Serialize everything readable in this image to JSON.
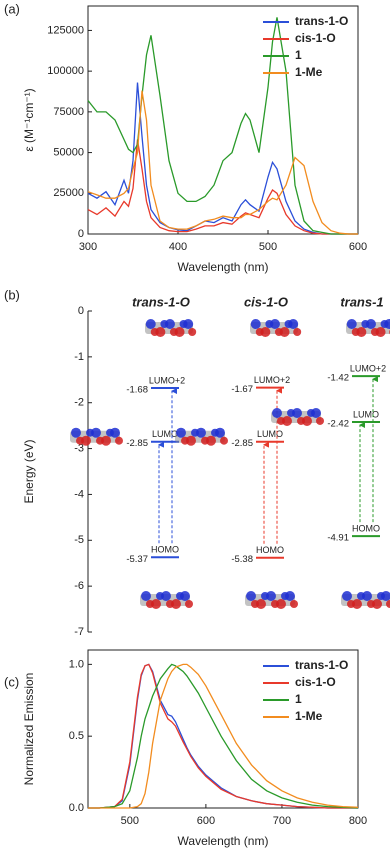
{
  "chart_data": [
    {
      "type": "line",
      "panel_label": "(a)",
      "xlabel": "Wavelength (nm)",
      "ylabel": "ε (M⁻¹cm⁻¹)",
      "xlim": [
        300,
        600
      ],
      "ylim": [
        0,
        140000
      ],
      "xticks": [
        300,
        400,
        500,
        600
      ],
      "yticks": [
        0,
        25000,
        50000,
        75000,
        100000,
        125000
      ],
      "legend": "upper right",
      "x": [
        300,
        310,
        320,
        330,
        340,
        345,
        350,
        355,
        360,
        365,
        370,
        380,
        390,
        400,
        410,
        420,
        430,
        440,
        450,
        460,
        470,
        475,
        480,
        490,
        500,
        505,
        510,
        520,
        530,
        540,
        550,
        560,
        570,
        580,
        590,
        600
      ],
      "series": [
        {
          "name": "trans-1-O",
          "color": "#2b4fd8",
          "values": [
            25000,
            22000,
            26000,
            18000,
            33000,
            25000,
            45000,
            93000,
            60000,
            30000,
            15000,
            7000,
            4000,
            2500,
            2000,
            5000,
            8000,
            7000,
            10000,
            8000,
            18000,
            21000,
            18000,
            14000,
            35000,
            44000,
            40000,
            20000,
            8000,
            3000,
            1000,
            0,
            0,
            0,
            0,
            0
          ]
        },
        {
          "name": "cis-1-O",
          "color": "#e8392b",
          "values": [
            15000,
            12000,
            16000,
            11000,
            20000,
            17000,
            28000,
            58000,
            40000,
            20000,
            10000,
            4000,
            2000,
            1500,
            1500,
            3000,
            5000,
            5000,
            7000,
            6000,
            11000,
            13000,
            12000,
            10000,
            22000,
            27000,
            25000,
            12000,
            5000,
            2000,
            500,
            0,
            0,
            0,
            0,
            0
          ]
        },
        {
          "name": "1",
          "color": "#2a9a2a",
          "values": [
            82000,
            75000,
            75000,
            70000,
            58000,
            52000,
            50000,
            55000,
            85000,
            110000,
            122000,
            85000,
            45000,
            25000,
            20000,
            20000,
            23000,
            30000,
            45000,
            50000,
            68000,
            74000,
            70000,
            50000,
            90000,
            118000,
            133000,
            100000,
            30000,
            8000,
            2000,
            1000,
            0,
            0,
            0,
            0
          ]
        },
        {
          "name": "1-Me",
          "color": "#f28c1f",
          "values": [
            26000,
            24000,
            22000,
            22000,
            25000,
            28000,
            40000,
            50000,
            88000,
            70000,
            30000,
            8000,
            4000,
            3000,
            3000,
            5000,
            8000,
            9000,
            11000,
            10000,
            10000,
            12000,
            12000,
            15000,
            20000,
            22000,
            21000,
            30000,
            47000,
            42000,
            20000,
            7000,
            2000,
            500,
            0,
            0
          ]
        }
      ]
    },
    {
      "type": "energy_levels",
      "panel_label": "(b)",
      "ylabel": "Energy (eV)",
      "ylim": [
        -7,
        0
      ],
      "yticks": [
        0,
        -1,
        -2,
        -3,
        -4,
        -5,
        -6,
        -7
      ],
      "columns": [
        {
          "name": "trans-1-O",
          "color": "#2b4fd8",
          "levels": [
            {
              "name": "LUMO+2",
              "value": -1.68
            },
            {
              "name": "LUMO",
              "value": -2.85
            },
            {
              "name": "HOMO",
              "value": -5.37
            }
          ]
        },
        {
          "name": "cis-1-O",
          "color": "#e8392b",
          "levels": [
            {
              "name": "LUMO+2",
              "value": -1.67
            },
            {
              "name": "LUMO",
              "value": -2.85
            },
            {
              "name": "HOMO",
              "value": -5.38
            }
          ]
        },
        {
          "name": "trans-1",
          "color": "#2a9a2a",
          "levels": [
            {
              "name": "LUMO+2",
              "value": -1.42
            },
            {
              "name": "LUMO",
              "value": -2.42
            },
            {
              "name": "HOMO",
              "value": -4.91
            }
          ]
        }
      ]
    },
    {
      "type": "line",
      "panel_label": "(c)",
      "xlabel": "Wavelength (nm)",
      "ylabel": "Normalized Emission",
      "xlim": [
        445,
        800
      ],
      "ylim": [
        0,
        1.1
      ],
      "xticks": [
        500,
        600,
        700,
        800
      ],
      "yticks": [
        {
          "value": 0,
          "label": "0.0"
        },
        {
          "value": 0.5,
          "label": "0.5"
        },
        {
          "value": 1,
          "label": "1.0"
        }
      ],
      "legend": "upper right",
      "x": [
        445,
        460,
        480,
        490,
        500,
        510,
        515,
        520,
        525,
        530,
        540,
        550,
        555,
        560,
        570,
        575,
        580,
        590,
        600,
        620,
        640,
        660,
        680,
        700,
        720,
        740,
        760,
        780,
        800
      ],
      "series": [
        {
          "name": "trans-1-O",
          "color": "#2b4fd8",
          "values": [
            0,
            0,
            0.01,
            0.05,
            0.3,
            0.75,
            0.92,
            0.99,
            1.0,
            0.95,
            0.75,
            0.65,
            0.64,
            0.6,
            0.48,
            0.42,
            0.37,
            0.29,
            0.23,
            0.14,
            0.08,
            0.05,
            0.03,
            0.02,
            0.01,
            0.005,
            0,
            0,
            0
          ]
        },
        {
          "name": "cis-1-O",
          "color": "#e8392b",
          "values": [
            0,
            0,
            0.01,
            0.06,
            0.32,
            0.77,
            0.93,
            0.99,
            1.0,
            0.94,
            0.73,
            0.62,
            0.6,
            0.57,
            0.46,
            0.41,
            0.36,
            0.28,
            0.22,
            0.13,
            0.08,
            0.05,
            0.03,
            0.02,
            0.01,
            0.005,
            0,
            0,
            0
          ]
        },
        {
          "name": "1",
          "color": "#2a9a2a",
          "values": [
            0,
            0,
            0.01,
            0.03,
            0.12,
            0.35,
            0.5,
            0.62,
            0.7,
            0.78,
            0.9,
            0.97,
            1.0,
            0.99,
            0.95,
            0.92,
            0.88,
            0.8,
            0.7,
            0.5,
            0.33,
            0.2,
            0.12,
            0.07,
            0.04,
            0.02,
            0.01,
            0.005,
            0
          ]
        },
        {
          "name": "1-Me",
          "color": "#f28c1f",
          "values": [
            0,
            0,
            0,
            0,
            0,
            0.01,
            0.03,
            0.1,
            0.25,
            0.45,
            0.75,
            0.9,
            0.95,
            0.98,
            1.0,
            1.0,
            0.98,
            0.93,
            0.85,
            0.65,
            0.45,
            0.3,
            0.19,
            0.12,
            0.07,
            0.04,
            0.02,
            0.01,
            0.005
          ]
        }
      ]
    }
  ]
}
